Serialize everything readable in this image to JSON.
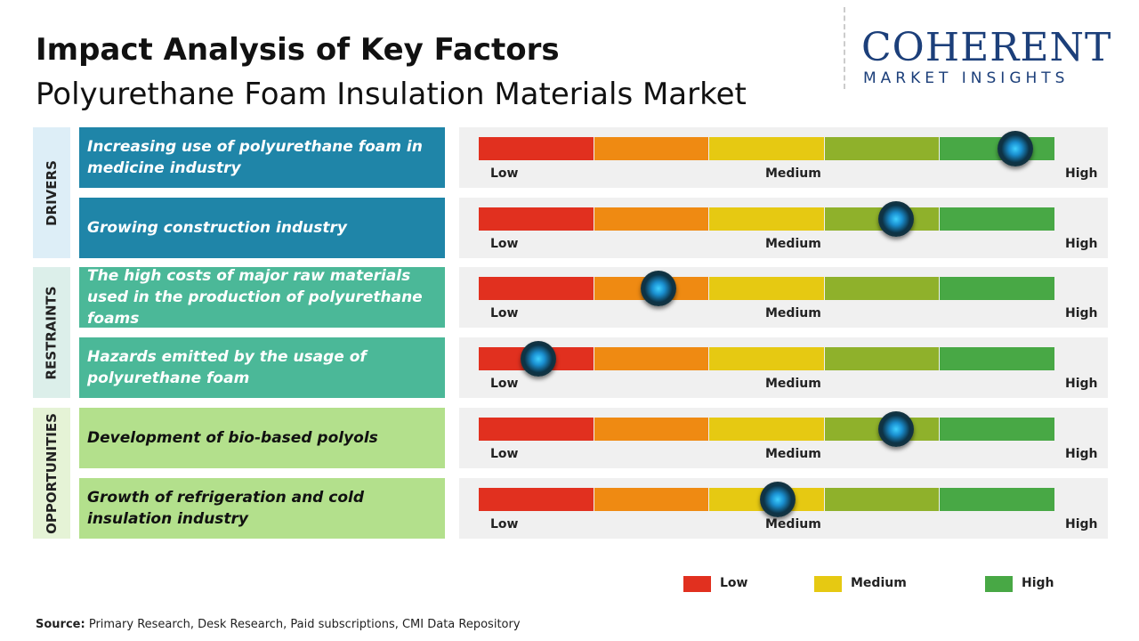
{
  "header": {
    "title": "Impact Analysis of Key Factors",
    "subtitle": "Polyurethane Foam Insulation Materials Market"
  },
  "logo": {
    "name": "COHERENT",
    "tagline": "MARKET INSIGHTS"
  },
  "scale": {
    "labels": [
      "Low",
      "Medium",
      "High"
    ],
    "range": [
      0,
      5
    ],
    "segment_colors": [
      "#e1301f",
      "#ef8a12",
      "#e6c912",
      "#8fb12b",
      "#48a845"
    ]
  },
  "groups": [
    {
      "label": "DRIVERS",
      "label_bg": "#ddeef7",
      "box_color": "#1f85a8",
      "text_color": "#ffffff",
      "factors": [
        {
          "text": "Increasing use of polyurethane foam in medicine industry",
          "level": 4.65
        },
        {
          "text": "Growing construction industry",
          "level": 3.62
        }
      ]
    },
    {
      "label": "RESTRAINTS",
      "label_bg": "#dcefea",
      "box_color": "#4bb898",
      "text_color": "#ffffff",
      "factors": [
        {
          "text": "The high costs of major raw materials used in the production of polyurethane foams",
          "level": 1.56
        },
        {
          "text": "Hazards emitted by the usage of polyurethane foam",
          "level": 0.52
        }
      ]
    },
    {
      "label": "OPPORTUNITIES",
      "label_bg": "#e5f3d6",
      "box_color": "#b3e08c",
      "text_color": "#111111",
      "factors": [
        {
          "text": "Development of bio-based polyols",
          "level": 3.62
        },
        {
          "text": "Growth of refrigeration and cold insulation industry",
          "level": 2.59
        }
      ]
    }
  ],
  "legend": [
    {
      "label": "Low",
      "color": "#e1301f"
    },
    {
      "label": "Medium",
      "color": "#e6c912"
    },
    {
      "label": "High",
      "color": "#48a845"
    }
  ],
  "source": {
    "label": "Source:",
    "text": "Primary Research, Desk Research, Paid subscriptions, CMI Data Repository"
  }
}
